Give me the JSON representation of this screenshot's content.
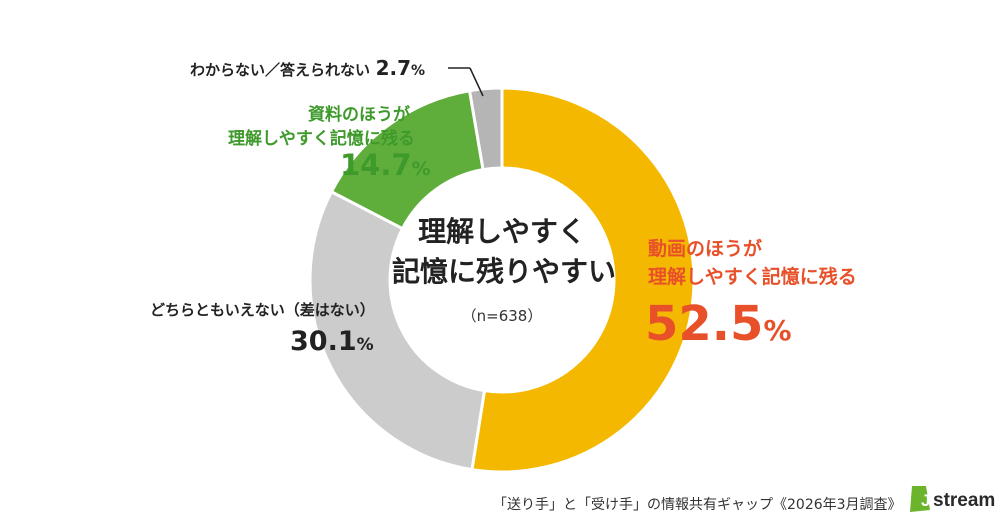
{
  "chart_data": {
    "type": "pie",
    "center_title_line1": "理解しやすく",
    "center_title_line2": "記憶に残りやすい",
    "center_note": "（n=638）",
    "slices": [
      {
        "label_line1": "動画のほうが",
        "label_line2": "理解しやすく記憶に残る",
        "value": 52.5,
        "value_text": "52.5",
        "unit": "%",
        "color": "#f5b800"
      },
      {
        "label_line1": "どちらともいえない（差はない）",
        "label_line2": "",
        "value": 30.1,
        "value_text": "30.1",
        "unit": "%",
        "color": "#cccccc"
      },
      {
        "label_line1": "資料のほうが",
        "label_line2": "理解しやすく記憶に残る",
        "value": 14.7,
        "value_text": "14.7",
        "unit": "%",
        "color": "#5fae3c"
      },
      {
        "label_line1": "わからない／答えられない",
        "label_line2": "",
        "value": 2.7,
        "value_text": "2.7",
        "unit": "%",
        "color": "#b5b5b5"
      }
    ]
  },
  "footer": {
    "source": "「送り手」と「受け手」の情報共有ギャップ《2026年3月調査》",
    "logo_text": "stream"
  }
}
